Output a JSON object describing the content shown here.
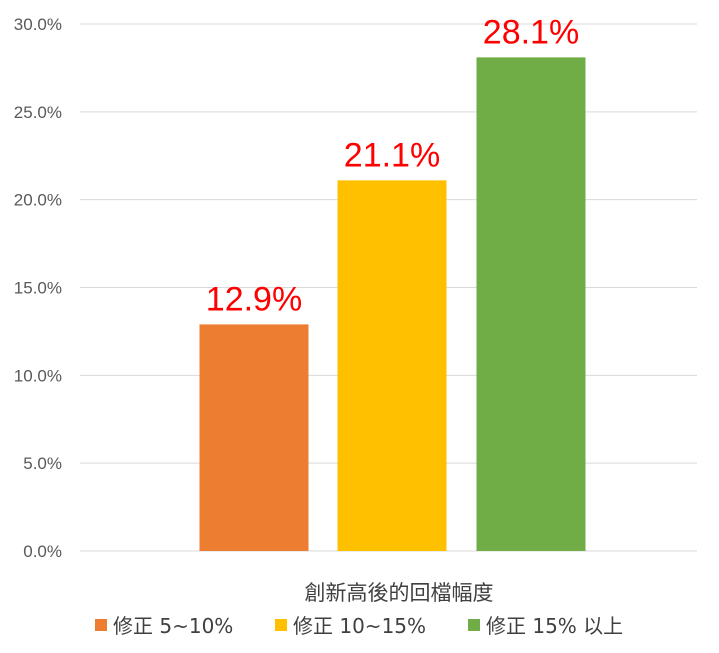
{
  "chart_data": {
    "type": "bar",
    "title": "",
    "xlabel": "創新高後的回檔幅度",
    "ylabel": "",
    "categories": [
      "修正 5~10%",
      "修正 10~15%",
      "修正 15% 以上"
    ],
    "values": [
      12.9,
      21.1,
      28.1
    ],
    "data_labels": [
      "12.9%",
      "21.1%",
      "28.1%"
    ],
    "colors": [
      "#ED7D31",
      "#FFC000",
      "#70AD47"
    ],
    "ylim": [
      0,
      30
    ],
    "y_ticks": [
      0,
      5,
      10,
      15,
      20,
      25,
      30
    ],
    "y_tick_labels": [
      "0.0%",
      "5.0%",
      "10.0%",
      "15.0%",
      "20.0%",
      "25.0%",
      "30.0%"
    ],
    "grid": true,
    "legend_position": "bottom",
    "data_label_color": "#FF0000"
  }
}
